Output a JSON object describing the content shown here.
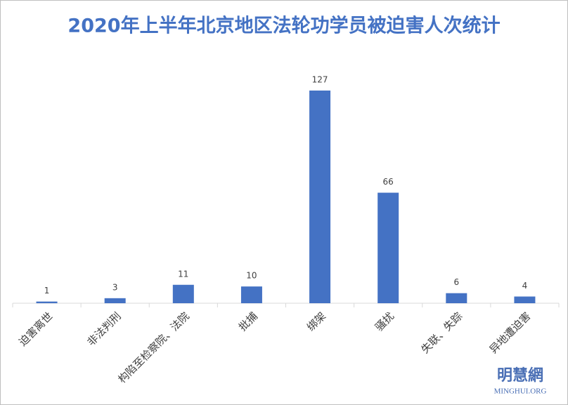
{
  "chart_data": {
    "type": "bar",
    "title": "2020年上半年北京地区法轮功学员被迫害人次统计",
    "categories": [
      "迫害离世",
      "非法判刑",
      "构陷至检察院、法院",
      "批捕",
      "绑架",
      "骚扰",
      "失联、失踪",
      "异地遭迫害"
    ],
    "values": [
      1,
      3,
      11,
      10,
      127,
      66,
      6,
      4
    ],
    "color": "#4472c4"
  },
  "watermark": {
    "name": "明慧網",
    "site": "MINGHUI.ORG"
  }
}
